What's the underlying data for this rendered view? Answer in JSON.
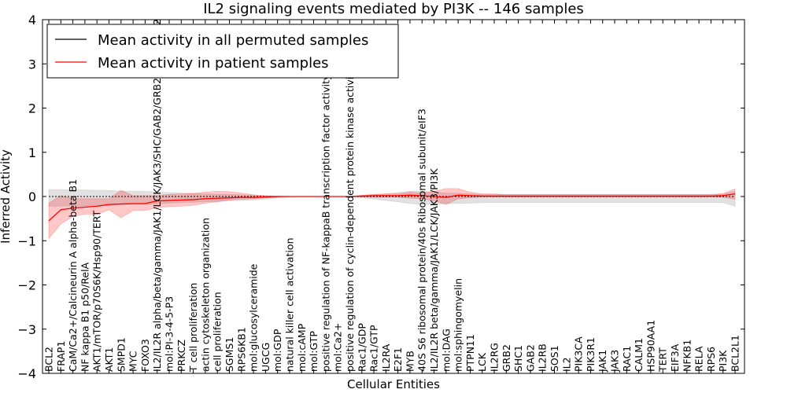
{
  "chart_data": {
    "type": "line",
    "title": "IL2 signaling events mediated by PI3K -- 146 samples",
    "xlabel": "Cellular Entities",
    "ylabel": "Inferred Activity",
    "ylim": [
      -4,
      4
    ],
    "yticks": [
      "4",
      "3",
      "2",
      "1",
      "0",
      "−1",
      "−2",
      "−3",
      "−4"
    ],
    "ytick_values": [
      4,
      3,
      2,
      1,
      0,
      -1,
      -2,
      -3,
      -4
    ],
    "legend_position": "top-left",
    "categories": [
      "BCL2",
      "FRAP1",
      "CaM/Ca2+/Calcineurin A alpha-beta B1",
      "NF kappa B1 p50/RelA",
      "AKT1/mTOR/p70S6K/Hsp90/TERT",
      "AKT1",
      "SMPD1",
      "MYC",
      "FOXO3",
      "IL2/IL2R alpha/beta/gamma/JAK1/LCK/JAK3/SHC/GAB2/GRB2/SOS1/SHP2",
      "mol:PI-3-4-5-P3",
      "PRKCZ",
      "T cell proliferation",
      "actin cytoskeleton organization",
      "cell proliferation",
      "SGMS1",
      "RPS6KB1",
      "mol:glucosylceramide",
      "UGCG",
      "mol:GDP",
      "natural killer cell activation",
      "mol:cAMP",
      "mol:GTP",
      "positive regulation of NF-kappaB transcription factor activity",
      "mol:Ca2+",
      "positive regulation of cyclin-dependent protein kinase activity",
      "Rac1/GDP",
      "Rac1/GTP",
      "IL2RA",
      "E2F1",
      "MYB",
      "40S S6 ribosomal protein/40s Ribosomal subunit/eIF3",
      "IL2/IL2R beta/gamma/JAK1/LCK/JAK3/PI3K",
      "mol:DAG",
      "mol:sphingomyelin",
      "PTPN11",
      "LCK",
      "IL2RG",
      "GRB2",
      "SHC1",
      "GAB2",
      "IL2RB",
      "SOS1",
      "IL2",
      "PIK3CA",
      "PIK3R1",
      "JAK1",
      "JAK3",
      "RAC1",
      "CALM1",
      "HSP90AA1",
      "TERT",
      "EIF3A",
      "NFKB1",
      "RELA",
      "RPS6",
      "PI3K",
      "BCL2L1"
    ],
    "series": [
      {
        "name": "Mean activity in all permuted samples",
        "color": "#000000",
        "values": [
          0,
          0,
          0,
          0,
          0,
          0,
          0,
          0,
          0,
          0,
          0,
          0,
          0,
          0,
          0,
          0,
          0,
          0,
          0,
          0,
          0,
          0,
          0,
          0,
          0,
          0,
          0,
          0,
          0,
          0,
          0,
          0,
          0,
          0,
          0,
          0,
          0,
          0,
          0,
          0,
          0,
          0,
          0,
          0,
          0,
          0,
          0,
          0,
          0,
          0,
          0,
          0,
          0,
          0,
          0,
          0,
          0,
          0
        ],
        "band_low": [
          -0.22,
          -0.22,
          -0.21,
          -0.21,
          -0.2,
          -0.2,
          -0.18,
          -0.18,
          -0.18,
          -0.17,
          -0.15,
          -0.14,
          -0.13,
          -0.12,
          -0.11,
          -0.1,
          -0.09,
          -0.08,
          -0.06,
          -0.03,
          -0.01,
          0,
          0,
          0,
          0,
          0,
          -0.03,
          -0.06,
          -0.09,
          -0.12,
          -0.16,
          -0.18,
          -0.17,
          -0.16,
          -0.16,
          -0.15,
          -0.14,
          -0.14,
          -0.14,
          -0.14,
          -0.14,
          -0.14,
          -0.14,
          -0.14,
          -0.14,
          -0.14,
          -0.14,
          -0.14,
          -0.14,
          -0.14,
          -0.14,
          -0.14,
          -0.14,
          -0.14,
          -0.14,
          -0.14,
          -0.14,
          -0.22
        ],
        "band_high": [
          0.16,
          0.16,
          0.15,
          0.15,
          0.14,
          0.14,
          0.12,
          0.12,
          0.12,
          0.1,
          0.09,
          0.08,
          0.07,
          0.06,
          0.05,
          0.05,
          0.04,
          0.03,
          0.02,
          0.01,
          0,
          0,
          0,
          0,
          0,
          0,
          0.02,
          0.04,
          0.06,
          0.09,
          0.12,
          0.12,
          0.1,
          0.08,
          0.07,
          0.06,
          0.05,
          0.05,
          0.05,
          0.05,
          0.05,
          0.05,
          0.05,
          0.05,
          0.05,
          0.05,
          0.05,
          0.05,
          0.05,
          0.05,
          0.05,
          0.05,
          0.05,
          0.05,
          0.05,
          0.05,
          0.05,
          0.12
        ]
      },
      {
        "name": "Mean activity in patient samples",
        "color": "#ff0000",
        "values": [
          -0.55,
          -0.3,
          -0.26,
          -0.24,
          -0.22,
          -0.18,
          -0.17,
          -0.16,
          -0.16,
          -0.1,
          -0.09,
          -0.08,
          -0.07,
          -0.05,
          -0.04,
          -0.03,
          -0.02,
          -0.02,
          -0.01,
          0,
          0,
          0,
          0,
          0,
          0,
          0,
          0.01,
          0.02,
          0.02,
          0.02,
          0.03,
          0.02,
          0,
          -0.02,
          0.03,
          0.02,
          0.01,
          0.01,
          0.01,
          0.01,
          0.01,
          0.01,
          0.01,
          0.01,
          0.01,
          0.01,
          0.01,
          0.01,
          0.01,
          0.01,
          0.01,
          0.01,
          0.01,
          0.01,
          0.01,
          0.01,
          0.02,
          0.06
        ],
        "band_low": [
          -0.95,
          -0.62,
          -0.45,
          -0.4,
          -0.4,
          -0.3,
          -0.48,
          -0.32,
          -0.32,
          -0.25,
          -0.23,
          -0.22,
          -0.2,
          -0.15,
          -0.12,
          -0.08,
          -0.06,
          -0.05,
          -0.03,
          -0.01,
          0,
          0,
          0,
          0,
          0,
          0,
          -0.01,
          -0.02,
          -0.02,
          -0.02,
          -0.04,
          -0.05,
          -0.1,
          -0.18,
          -0.05,
          -0.03,
          -0.01,
          -0.01,
          -0.01,
          -0.01,
          -0.01,
          -0.01,
          -0.01,
          -0.01,
          -0.01,
          -0.01,
          -0.01,
          -0.01,
          -0.01,
          -0.01,
          -0.01,
          -0.01,
          -0.01,
          -0.01,
          -0.01,
          -0.01,
          -0.02,
          -0.06
        ],
        "band_high": [
          -0.15,
          0.02,
          -0.05,
          -0.05,
          -0.05,
          -0.05,
          0.14,
          0.02,
          0.02,
          0.02,
          0.05,
          0.06,
          0.07,
          0.1,
          0.12,
          0.11,
          0.08,
          0.04,
          0.02,
          0.01,
          0,
          0,
          0,
          0,
          0,
          0,
          0.03,
          0.05,
          0.06,
          0.06,
          0.1,
          0.08,
          0.12,
          0.18,
          0.18,
          0.1,
          0.06,
          0.06,
          0.04,
          0.04,
          0.04,
          0.04,
          0.04,
          0.04,
          0.04,
          0.04,
          0.04,
          0.04,
          0.04,
          0.04,
          0.04,
          0.04,
          0.04,
          0.04,
          0.04,
          0.04,
          0.07,
          0.17
        ]
      }
    ]
  }
}
